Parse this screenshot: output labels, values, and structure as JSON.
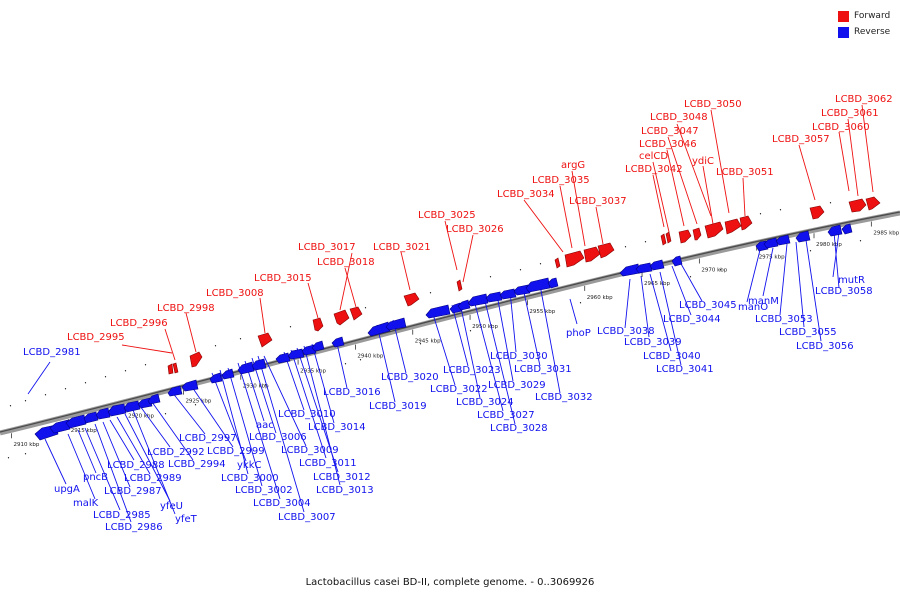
{
  "legend": {
    "forward_label": "Forward",
    "reverse_label": "Reverse",
    "forward_color": "#ee1111",
    "reverse_color": "#1111ee"
  },
  "caption": "Lactobacillus casei BD-II, complete genome. - 0..3069926",
  "axis": {
    "range_kbp": [
      2909,
      2987.5
    ],
    "ticks": [
      {
        "kbp": 2910,
        "label": "2910 kbp"
      },
      {
        "kbp": 2915,
        "label": "2915 kbp"
      },
      {
        "kbp": 2920,
        "label": "2920 kbp"
      },
      {
        "kbp": 2925,
        "label": "2925 kbp"
      },
      {
        "kbp": 2930,
        "label": "2930 kbp"
      },
      {
        "kbp": 2935,
        "label": "2935 kbp"
      },
      {
        "kbp": 2940,
        "label": "2940 kbp"
      },
      {
        "kbp": 2945,
        "label": "2945 kbp"
      },
      {
        "kbp": 2950,
        "label": "2950 kbp"
      },
      {
        "kbp": 2955,
        "label": "2955 kbp"
      },
      {
        "kbp": 2960,
        "label": "2960 kbp"
      },
      {
        "kbp": 2965,
        "label": "2965 kbp"
      },
      {
        "kbp": 2970,
        "label": "2970 kbp"
      },
      {
        "kbp": 2975,
        "label": "2975 kbp"
      },
      {
        "kbp": 2980,
        "label": "2980 kbp"
      },
      {
        "kbp": 2985,
        "label": "2985 kbp"
      }
    ]
  },
  "forward_labels": [
    "LCBD_2995",
    "LCBD_2996",
    "LCBD_2998",
    "LCBD_3008",
    "LCBD_3015",
    "LCBD_3017",
    "LCBD_3018",
    "LCBD_3021",
    "LCBD_3025",
    "LCBD_3026",
    "LCBD_3034",
    "LCBD_3035",
    "argG",
    "LCBD_3037",
    "LCBD_3042",
    "celCD",
    "LCBD_3046",
    "LCBD_3047",
    "LCBD_3048",
    "LCBD_3050",
    "ydiC",
    "LCBD_3051",
    "LCBD_3057",
    "LCBD_3060",
    "LCBD_3061",
    "LCBD_3062"
  ],
  "reverse_labels": [
    "LCBD_2981",
    "upgA",
    "malK",
    "pncB",
    "LCBD_2985",
    "LCBD_2986",
    "LCBD_2987",
    "LCBD_2988",
    "LCBD_2989",
    "yfeU",
    "yfeT",
    "LCBD_2992",
    "LCBD_2994",
    "LCBD_2997",
    "LCBD_2999",
    "ykkC",
    "LCBD_3000",
    "LCBD_3002",
    "LCBD_3004",
    "aac",
    "LCBD_3006",
    "LCBD_3007",
    "LCBD_3009",
    "LCBD_3010",
    "LCBD_3011",
    "LCBD_3012",
    "LCBD_3013",
    "LCBD_3014",
    "LCBD_3016",
    "LCBD_3019",
    "LCBD_3020",
    "LCBD_3022",
    "LCBD_3023",
    "LCBD_3024",
    "LCBD_3027",
    "LCBD_3028",
    "LCBD_3029",
    "LCBD_3030",
    "LCBD_3031",
    "LCBD_3032",
    "phoP",
    "LCBD_3038",
    "LCBD_3039",
    "LCBD_3040",
    "LCBD_3041",
    "LCBD_3044",
    "LCBD_3045",
    "manO",
    "manM",
    "LCBD_3053",
    "LCBD_3055",
    "LCBD_3056",
    "LCBD_3058",
    "mutR"
  ]
}
